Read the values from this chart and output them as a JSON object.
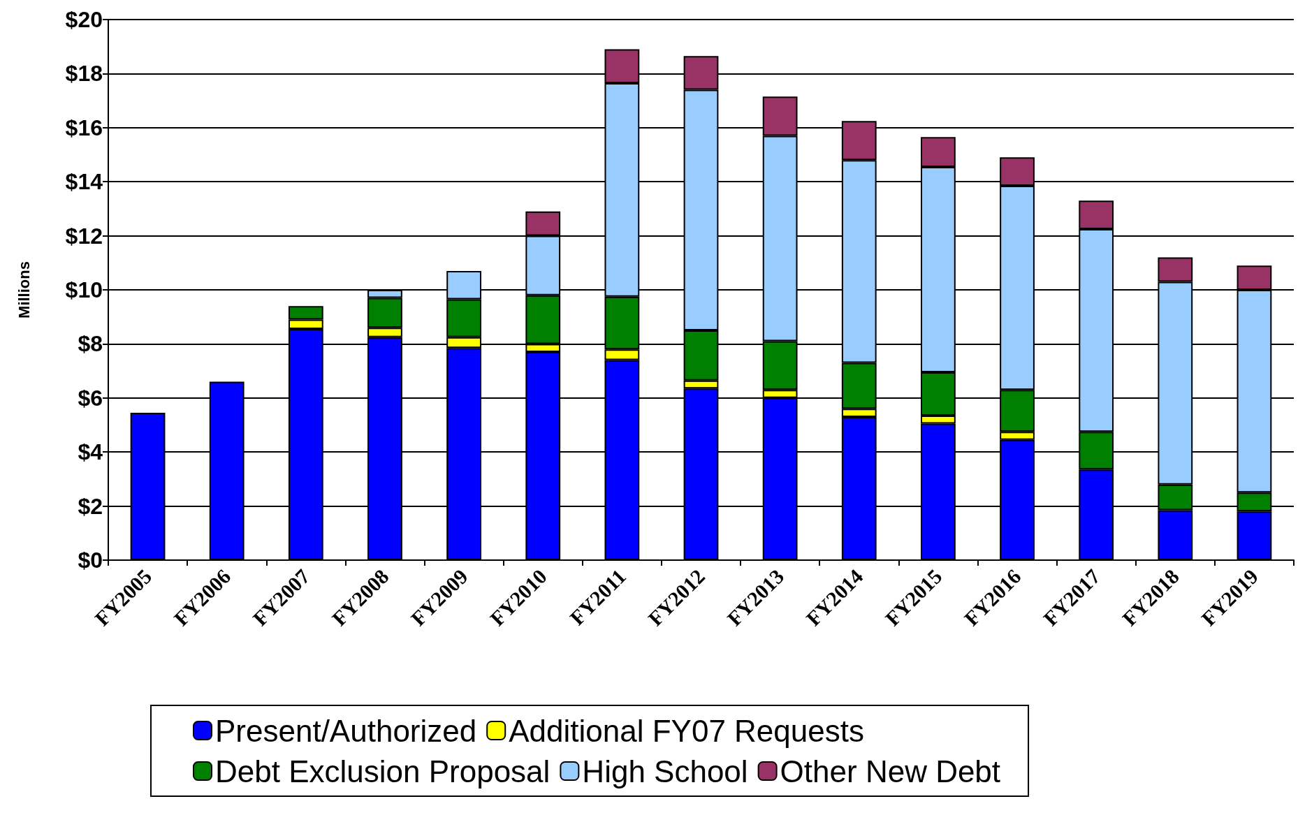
{
  "chart_data": {
    "type": "bar",
    "stacked": true,
    "ylabel": "Millions",
    "categories": [
      "FY2005",
      "FY2006",
      "FY2007",
      "FY2008",
      "FY2009",
      "FY2010",
      "FY2011",
      "FY2012",
      "FY2013",
      "FY2014",
      "FY2015",
      "FY2016",
      "FY2017",
      "FY2018",
      "FY2019"
    ],
    "series": [
      {
        "name": "Present/Authorized",
        "color": "#0000ff",
        "values": [
          5.45,
          6.6,
          8.55,
          8.25,
          7.85,
          7.7,
          7.4,
          6.35,
          6.0,
          5.3,
          5.05,
          4.45,
          3.35,
          1.85,
          1.8
        ]
      },
      {
        "name": "Additional FY07 Requests",
        "color": "#ffff00",
        "values": [
          null,
          null,
          0.35,
          0.35,
          0.4,
          0.3,
          0.4,
          0.3,
          0.3,
          0.3,
          0.3,
          0.3,
          null,
          null,
          null
        ]
      },
      {
        "name": "Debt Exclusion Proposal",
        "color": "#008000",
        "values": [
          null,
          null,
          0.5,
          1.1,
          1.4,
          1.8,
          1.95,
          1.85,
          1.8,
          1.7,
          1.6,
          1.55,
          1.4,
          0.95,
          0.7
        ]
      },
      {
        "name": "High School",
        "color": "#99ccff",
        "values": [
          null,
          null,
          null,
          0.3,
          1.05,
          2.2,
          7.9,
          8.9,
          7.6,
          7.5,
          7.6,
          7.55,
          7.5,
          7.5,
          7.5
        ]
      },
      {
        "name": "Other New Debt",
        "color": "#993366",
        "values": [
          null,
          null,
          null,
          null,
          null,
          0.9,
          1.25,
          1.25,
          1.45,
          1.45,
          1.1,
          1.05,
          1.05,
          0.9,
          0.9
        ]
      }
    ],
    "ylim": [
      0,
      20
    ],
    "yticks": [
      {
        "value": 0,
        "label": "$0"
      },
      {
        "value": 2,
        "label": "$2"
      },
      {
        "value": 4,
        "label": "$4"
      },
      {
        "value": 6,
        "label": "$6"
      },
      {
        "value": 8,
        "label": "$8"
      },
      {
        "value": 10,
        "label": "$10"
      },
      {
        "value": 12,
        "label": "$12"
      },
      {
        "value": 14,
        "label": "$14"
      },
      {
        "value": 16,
        "label": "$16"
      },
      {
        "value": 18,
        "label": "$18"
      },
      {
        "value": 20,
        "label": "$20"
      }
    ],
    "grid": "y",
    "legend": "bottom"
  }
}
